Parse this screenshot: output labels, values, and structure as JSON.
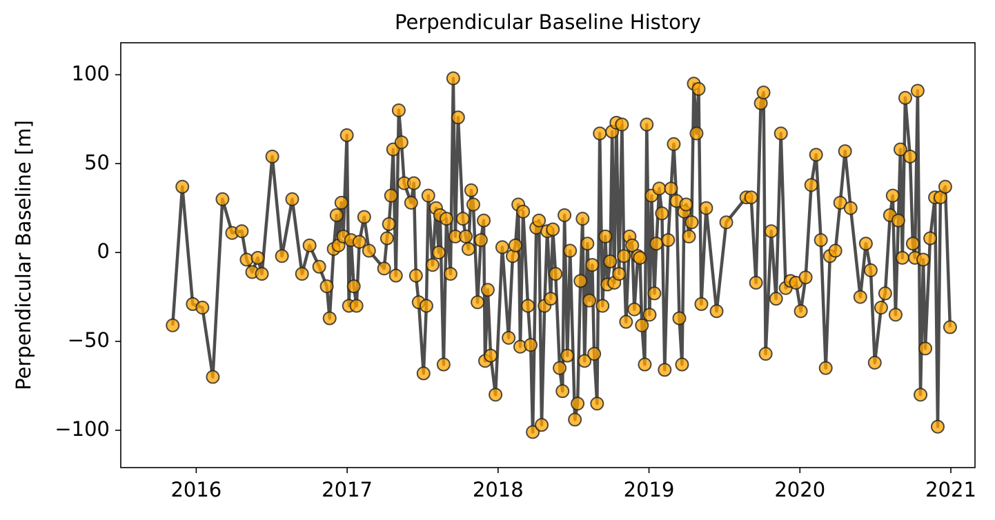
{
  "chart_data": {
    "type": "line",
    "title": "Perpendicular Baseline History",
    "ylabel": "Perpendicular Baseline [m]",
    "color": "#ffa500",
    "line_color": "#444444",
    "xlim": [
      2015.5,
      2021.16
    ],
    "xticks": [
      2016,
      2017,
      2018,
      2019,
      2020,
      2021
    ],
    "ylim": [
      -121,
      118
    ],
    "yticks": [
      {
        "value": -100,
        "label": "−100"
      },
      {
        "value": -50,
        "label": "−50"
      },
      0,
      50,
      100
    ],
    "x": [
      2015.844,
      2015.908,
      2015.977,
      2016.041,
      2016.11,
      2016.174,
      2016.238,
      2016.302,
      2016.334,
      2016.371,
      2016.408,
      2016.435,
      2016.504,
      2016.568,
      2016.636,
      2016.701,
      2016.751,
      2016.815,
      2016.865,
      2016.884,
      2016.911,
      2016.93,
      2016.943,
      2016.962,
      2016.975,
      2016.998,
      2017.012,
      2017.026,
      2017.044,
      2017.062,
      2017.081,
      2017.113,
      2017.145,
      2017.245,
      2017.264,
      2017.277,
      2017.291,
      2017.305,
      2017.323,
      2017.342,
      2017.36,
      2017.378,
      2017.424,
      2017.442,
      2017.456,
      2017.474,
      2017.506,
      2017.525,
      2017.538,
      2017.566,
      2017.589,
      2017.607,
      2017.616,
      2017.639,
      2017.658,
      2017.685,
      2017.703,
      2017.717,
      2017.735,
      2017.767,
      2017.786,
      2017.804,
      2017.822,
      2017.836,
      2017.864,
      2017.886,
      2017.905,
      2017.914,
      2017.932,
      2017.951,
      2017.983,
      2018.028,
      2018.07,
      2018.097,
      2018.115,
      2018.134,
      2018.147,
      2018.166,
      2018.198,
      2018.216,
      2018.23,
      2018.253,
      2018.271,
      2018.289,
      2018.308,
      2018.326,
      2018.349,
      2018.363,
      2018.381,
      2018.408,
      2018.427,
      2018.44,
      2018.459,
      2018.477,
      2018.509,
      2018.527,
      2018.546,
      2018.56,
      2018.573,
      2018.592,
      2018.605,
      2018.624,
      2018.637,
      2018.656,
      2018.674,
      2018.692,
      2018.711,
      2018.724,
      2018.743,
      2018.756,
      2018.77,
      2018.784,
      2018.802,
      2018.821,
      2018.834,
      2018.848,
      2018.871,
      2018.889,
      2018.903,
      2018.926,
      2018.94,
      2018.953,
      2018.972,
      2018.985,
      2019.004,
      2019.017,
      2019.036,
      2019.049,
      2019.068,
      2019.086,
      2019.104,
      2019.127,
      2019.146,
      2019.164,
      2019.182,
      2019.201,
      2019.219,
      2019.233,
      2019.246,
      2019.265,
      2019.283,
      2019.297,
      2019.315,
      2019.329,
      2019.347,
      2019.379,
      2019.448,
      2019.512,
      2019.645,
      2019.677,
      2019.709,
      2019.741,
      2019.759,
      2019.773,
      2019.81,
      2019.842,
      2019.874,
      2019.906,
      2019.938,
      2019.974,
      2020.006,
      2020.038,
      2020.075,
      2020.107,
      2020.139,
      2020.171,
      2020.199,
      2020.235,
      2020.267,
      2020.299,
      2020.336,
      2020.4,
      2020.437,
      2020.469,
      2020.496,
      2020.538,
      2020.565,
      2020.597,
      2020.615,
      2020.634,
      2020.652,
      2020.666,
      2020.679,
      2020.698,
      2020.73,
      2020.748,
      2020.762,
      2020.78,
      2020.799,
      2020.817,
      2020.831,
      2020.863,
      2020.895,
      2020.913,
      2020.931,
      2020.963,
      2020.995
    ],
    "values": [
      -41,
      37,
      -29,
      -31,
      -70,
      30,
      11,
      12,
      -4,
      -11,
      -3,
      -12,
      54,
      -2,
      30,
      -12,
      4,
      -8,
      -19,
      -37,
      2,
      21,
      4,
      28,
      9,
      66,
      -30,
      7,
      -19,
      -30,
      6,
      20,
      1,
      -9,
      8,
      16,
      32,
      58,
      -13,
      80,
      62,
      39,
      28,
      39,
      -13,
      -28,
      -68,
      -30,
      32,
      -7,
      25,
      0,
      21,
      -63,
      19,
      -12,
      98,
      9,
      76,
      19,
      9,
      2,
      35,
      27,
      -28,
      7,
      18,
      -61,
      -21,
      -58,
      -80,
      3,
      -48,
      -2,
      4,
      27,
      -53,
      23,
      -30,
      -52,
      -101,
      14,
      18,
      -97,
      -30,
      12,
      -26,
      13,
      -12,
      -65,
      -78,
      21,
      -58,
      1,
      -94,
      -85,
      -16,
      19,
      -61,
      5,
      -27,
      -7,
      -57,
      -85,
      67,
      -30,
      9,
      -18,
      -5,
      68,
      -17,
      73,
      -12,
      72,
      -2,
      -39,
      9,
      4,
      -32,
      -2,
      -3,
      -41,
      -63,
      72,
      -35,
      32,
      -23,
      5,
      36,
      22,
      -66,
      7,
      36,
      61,
      29,
      -37,
      -63,
      23,
      27,
      9,
      17,
      95,
      67,
      92,
      -29,
      25,
      -33,
      17,
      31,
      31,
      -17,
      84,
      90,
      -57,
      12,
      -26,
      67,
      -20,
      -16,
      -17,
      -33,
      -14,
      38,
      55,
      7,
      -65,
      -2,
      1,
      28,
      57,
      25,
      -25,
      5,
      -10,
      -62,
      -31,
      -23,
      21,
      32,
      -35,
      18,
      58,
      -3,
      87,
      54,
      5,
      -3,
      91,
      -80,
      -4,
      -54,
      8,
      31,
      -98,
      31,
      37,
      -42
    ]
  }
}
